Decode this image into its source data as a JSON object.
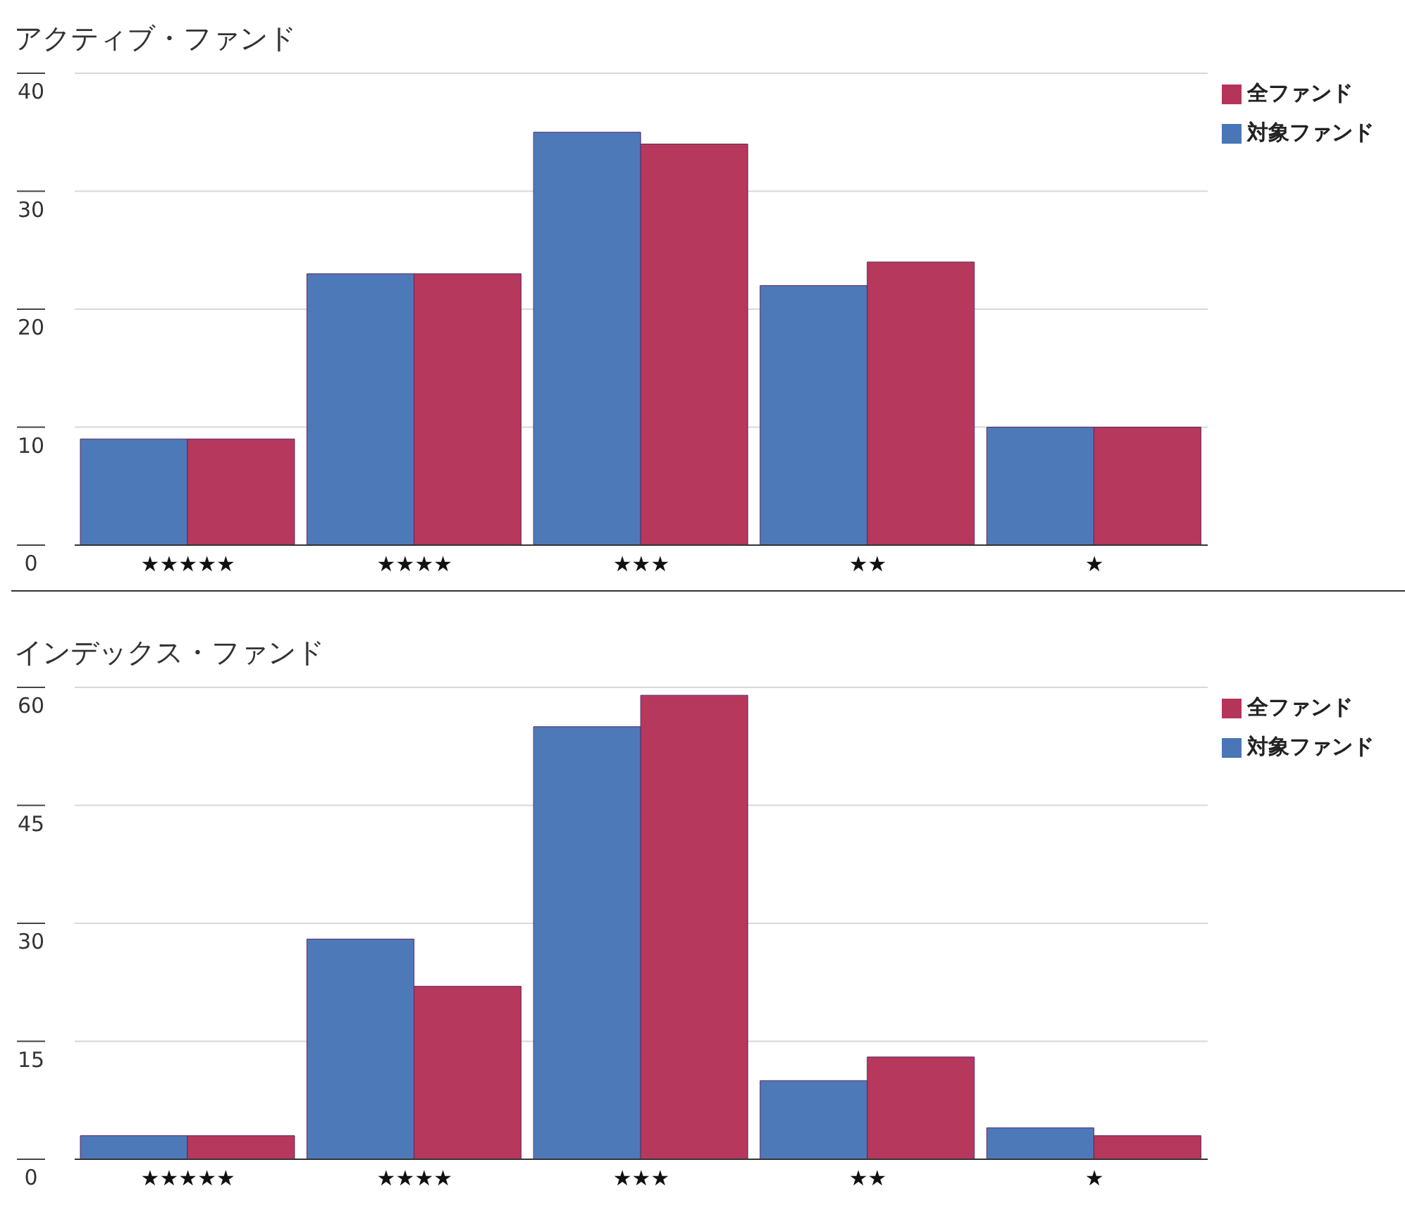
{
  "chart_data": [
    {
      "type": "bar",
      "title": "アクティブ・ファンド",
      "categories": [
        "★★★★★",
        "★★★★",
        "★★★",
        "★★",
        "★"
      ],
      "series": [
        {
          "name": "対象ファンド",
          "color": "#4a76b8",
          "values": [
            9,
            23,
            35,
            22,
            10
          ]
        },
        {
          "name": "全ファンド",
          "color": "#b5345a",
          "values": [
            9,
            23,
            34,
            24,
            10
          ]
        }
      ],
      "ylim": [
        0,
        40
      ],
      "yticks": [
        0,
        10,
        20,
        30,
        40
      ],
      "grid": "y",
      "legend": "top right"
    },
    {
      "type": "bar",
      "title": "インデックス・ファンド",
      "categories": [
        "★★★★★",
        "★★★★",
        "★★★",
        "★★",
        "★"
      ],
      "series": [
        {
          "name": "対象ファンド",
          "color": "#4a76b8",
          "values": [
            3,
            28,
            55,
            10,
            4
          ]
        },
        {
          "name": "全ファンド",
          "color": "#b5345a",
          "values": [
            3,
            22,
            59,
            13,
            3
          ]
        }
      ],
      "ylim": [
        0,
        60
      ],
      "yticks": [
        0,
        15,
        30,
        45,
        60
      ],
      "grid": "y",
      "legend": "top right"
    }
  ]
}
